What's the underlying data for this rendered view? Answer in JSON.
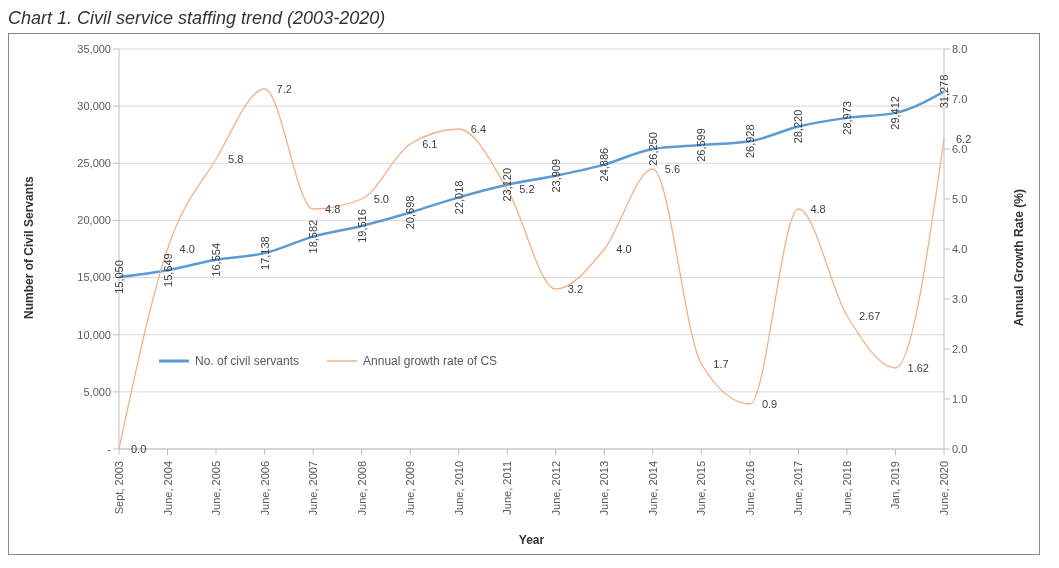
{
  "chart_data": {
    "type": "line",
    "title": "Chart 1. Civil service staffing trend (2003-2020)",
    "xlabel": "Year",
    "ylabel": "Number of Civil Servants",
    "y2label": "Annual Growth Rate (%)",
    "categories": [
      "Sept, 2003",
      "June, 2004",
      "June, 2005",
      "June, 2006",
      "June, 2007",
      "June, 2008",
      "June, 2009",
      "June, 2010",
      "June, 2011",
      "June, 2012",
      "June, 2013",
      "June, 2014",
      "June, 2015",
      "June, 2016",
      "June, 2017",
      "June, 2018",
      "Jan, 2019",
      "June, 2020"
    ],
    "series": [
      {
        "name": "No. of civil servants",
        "color": "#5b9bd5",
        "values": [
          15050,
          15649,
          16554,
          17138,
          18582,
          19516,
          20698,
          22018,
          23120,
          23909,
          24886,
          26250,
          26599,
          26928,
          28220,
          28973,
          29412,
          31278
        ],
        "value_labels": [
          "15,050",
          "15,649",
          "16,554",
          "17,138",
          "18,582",
          "19,516",
          "20,698",
          "22,018",
          "23,120",
          "23,909",
          "24,886",
          "26,250",
          "26,599",
          "26,928",
          "28,220",
          "28,973",
          "29,412",
          "31,278"
        ]
      },
      {
        "name": "Annual growth rate of CS",
        "color": "#f4b183",
        "axis": "y2",
        "values": [
          0.0,
          4.0,
          5.8,
          7.2,
          4.8,
          5.0,
          6.1,
          6.4,
          5.2,
          3.2,
          4.0,
          5.6,
          1.7,
          0.9,
          4.8,
          2.67,
          1.62,
          6.2
        ],
        "value_labels": [
          "0.0",
          "4.0",
          "5.8",
          "7.2",
          "4.8",
          "5.0",
          "6.1",
          "6.4",
          "5.2",
          "3.2",
          "4.0",
          "5.6",
          "1.7",
          "0.9",
          "4.8",
          "2.67",
          "1.62",
          "6.2"
        ]
      }
    ],
    "ylim": [
      0,
      35000
    ],
    "yticks": [
      {
        "value": 0,
        "label": "-"
      },
      {
        "value": 5000,
        "label": "5,000"
      },
      {
        "value": 10000,
        "label": "10,000"
      },
      {
        "value": 15000,
        "label": "15,000"
      },
      {
        "value": 20000,
        "label": "20,000"
      },
      {
        "value": 25000,
        "label": "25,000"
      },
      {
        "value": 30000,
        "label": "30,000"
      },
      {
        "value": 35000,
        "label": "35,000"
      }
    ],
    "y2lim": [
      0,
      8
    ],
    "y2ticks": [
      {
        "value": 0,
        "label": "0.0"
      },
      {
        "value": 1,
        "label": "1.0"
      },
      {
        "value": 2,
        "label": "2.0"
      },
      {
        "value": 3,
        "label": "3.0"
      },
      {
        "value": 4,
        "label": "4.0"
      },
      {
        "value": 5,
        "label": "5.0"
      },
      {
        "value": 6,
        "label": "6.0"
      },
      {
        "value": 7,
        "label": "7.0"
      },
      {
        "value": 8,
        "label": "8.0"
      }
    ],
    "grid": "y",
    "legend": "left",
    "marker": "none",
    "line_style": "solid"
  }
}
